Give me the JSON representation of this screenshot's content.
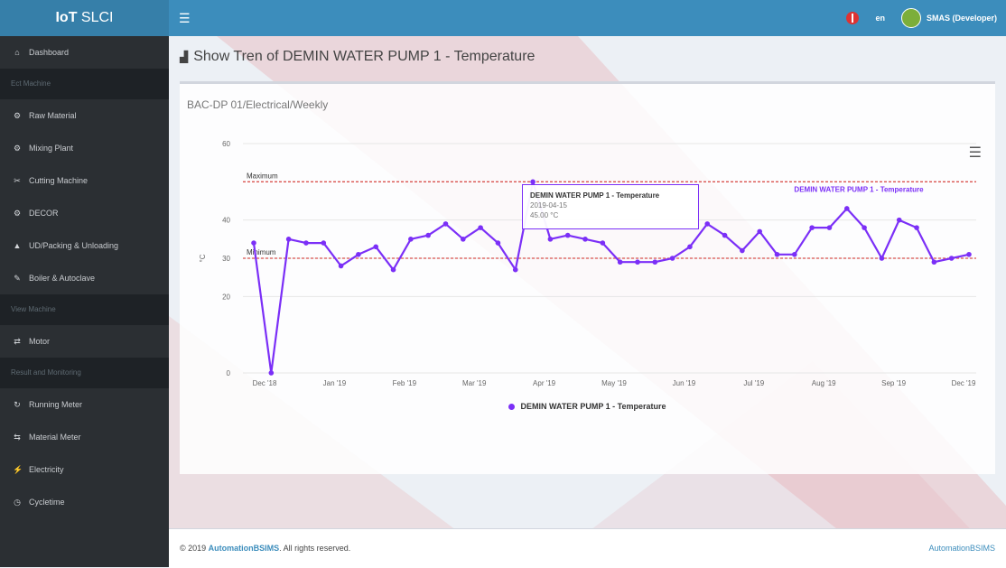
{
  "app": {
    "title_bold": "IoT",
    "title_rest": " SLCI"
  },
  "topbar": {
    "menu_icon": "hamburger-icon",
    "lang": "en",
    "user_name": "SMAS (Developer)"
  },
  "sidebar": {
    "items": [
      {
        "icon": "dashboard-icon",
        "glyph": "⌂",
        "label": "Dashboard",
        "type": "item"
      },
      {
        "label": "Ect Machine",
        "type": "header"
      },
      {
        "icon": "gear-icon",
        "glyph": "⚙",
        "label": "Raw Material",
        "type": "item"
      },
      {
        "icon": "gear-icon",
        "glyph": "⚙",
        "label": "Mixing Plant",
        "type": "item"
      },
      {
        "icon": "cutting-icon",
        "glyph": "✂",
        "label": "Cutting Machine",
        "type": "item"
      },
      {
        "icon": "gear-icon",
        "glyph": "⚙",
        "label": "DECOR",
        "type": "item"
      },
      {
        "icon": "packing-icon",
        "glyph": "▲",
        "label": "UD/Packing & Unloading",
        "type": "item"
      },
      {
        "icon": "boiler-icon",
        "glyph": "✎",
        "label": "Boiler & Autoclave",
        "type": "item"
      },
      {
        "label": "View Machine",
        "type": "header"
      },
      {
        "icon": "motor-icon",
        "glyph": "⇄",
        "label": "Motor",
        "type": "item"
      },
      {
        "label": "Result and Monitoring",
        "type": "header"
      },
      {
        "icon": "running-meter-icon",
        "glyph": "↻",
        "label": "Running Meter",
        "type": "item"
      },
      {
        "icon": "material-meter-icon",
        "glyph": "⇆",
        "label": "Material Meter",
        "type": "item"
      },
      {
        "icon": "electricity-icon",
        "glyph": "⚡",
        "label": "Electricity",
        "type": "item"
      },
      {
        "icon": "cycletime-icon",
        "glyph": "◷",
        "label": "Cycletime",
        "type": "item"
      }
    ]
  },
  "page": {
    "title": "Show Tren of DEMIN WATER PUMP 1 - Temperature",
    "subtitle": "BAC-DP 01/Electrical/Weekly"
  },
  "tooltip": {
    "title": "DEMIN WATER PUMP 1 - Temperature",
    "line2": "2019-04-15",
    "line3": "45.00 °C"
  },
  "footer": {
    "copyright_prefix": "© 2019",
    "brand": "AutomationBSIMS",
    "copyright_suffix": ". All rights reserved.",
    "right_brand": "AutomationBSIMS"
  },
  "colors": {
    "topbar": "#3c8dbc",
    "sidebar": "#2b2f33",
    "series": "#7b2ff7",
    "threshold": "#d9534f"
  },
  "chart_data": {
    "type": "line",
    "x_tick_labels": [
      "Dec '18",
      "Jan '19",
      "Feb '19",
      "Mar '19",
      "Apr '19",
      "May '19",
      "Jun '19",
      "Jul '19",
      "Aug '19",
      "Sep '19",
      "Dec '19"
    ],
    "y_ticks": [
      0,
      20,
      30,
      40,
      60
    ],
    "y_display_range": [
      0,
      60
    ],
    "ylabel": "°C",
    "series": [
      {
        "name": "DEMIN WATER PUMP 1 - Temperature",
        "values": [
          34,
          0,
          35,
          34,
          34,
          28,
          31,
          33,
          27,
          35,
          36,
          39,
          35,
          38,
          34,
          27,
          50,
          35,
          36,
          35,
          34,
          29,
          29,
          29,
          30,
          33,
          39,
          36,
          32,
          37,
          31,
          31,
          38,
          38,
          43,
          38,
          30,
          40,
          38,
          29,
          30,
          31
        ]
      }
    ],
    "annotations": [
      {
        "label": "Maximum",
        "value": 50,
        "style": "dashed"
      },
      {
        "label": "Minimum",
        "value": 30,
        "style": "dashed"
      }
    ],
    "series_label": "DEMIN WATER PUMP 1 - Temperature",
    "legend_position": "bottom",
    "grid": true
  }
}
